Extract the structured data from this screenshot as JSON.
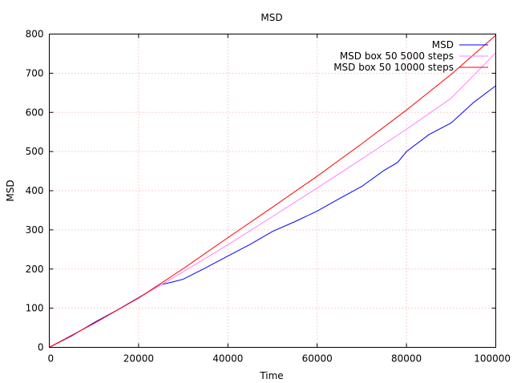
{
  "chart_data": {
    "type": "line",
    "title": "MSD",
    "xlabel": "Time",
    "ylabel": "MSD",
    "xlim": [
      0,
      100000
    ],
    "ylim": [
      0,
      800
    ],
    "xticks": [
      0,
      20000,
      40000,
      60000,
      80000,
      100000
    ],
    "yticks": [
      0,
      100,
      200,
      300,
      400,
      500,
      600,
      700,
      800
    ],
    "x_tick_labels": [
      "0",
      "20000",
      "40000",
      "60000",
      "80000",
      "100000"
    ],
    "y_tick_labels": [
      "0",
      "100",
      "200",
      "300",
      "400",
      "500",
      "600",
      "700",
      "800"
    ],
    "grid": true,
    "legend_position": "top-right",
    "series": [
      {
        "name": "MSD",
        "color": "#0000ff",
        "x": [
          0,
          5000,
          10000,
          15000,
          20000,
          25000,
          28000,
          30000,
          35000,
          40000,
          45000,
          50000,
          55000,
          60000,
          65000,
          70000,
          75000,
          78000,
          80000,
          85000,
          90000,
          95000,
          100000
        ],
        "y": [
          0,
          29,
          63,
          94,
          127,
          160,
          168,
          174,
          203,
          233,
          263,
          296,
          321,
          348,
          380,
          411,
          452,
          472,
          500,
          543,
          573,
          625,
          668
        ]
      },
      {
        "name": "MSD box 50 5000 steps",
        "color": "#ff80ff",
        "x": [
          0,
          10000,
          20000,
          30000,
          40000,
          50000,
          60000,
          70000,
          80000,
          90000,
          100000
        ],
        "y": [
          0,
          61,
          126,
          193,
          262,
          334,
          407,
          481,
          557,
          636,
          752
        ]
      },
      {
        "name": "MSD box 50 10000 steps",
        "color": "#ff0000",
        "x": [
          0,
          10000,
          20000,
          30000,
          40000,
          50000,
          60000,
          70000,
          80000,
          90000,
          100000
        ],
        "y": [
          0,
          61,
          126,
          201,
          280,
          358,
          437,
          520,
          606,
          697,
          797
        ]
      }
    ]
  }
}
